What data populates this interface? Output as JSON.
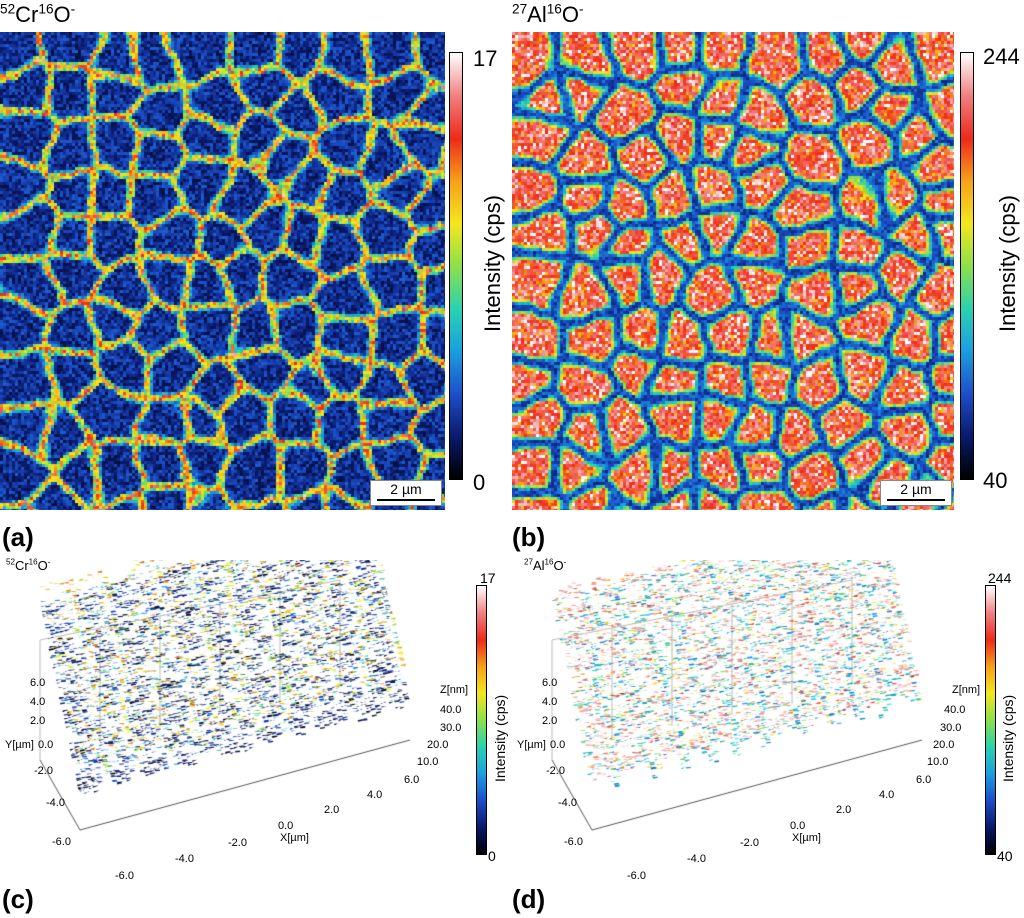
{
  "panels": {
    "a": {
      "title": {
        "iso1": "52",
        "el1": "Cr",
        "iso2": "16",
        "el2": "O",
        "charge": "-"
      },
      "letter": "(a)",
      "colorbar": {
        "max": "17",
        "min": "0",
        "label": "Intensity (cps)"
      },
      "scalebar": "2 µm",
      "dominant": "dark-domains-bright-channels"
    },
    "b": {
      "title": {
        "iso1": "27",
        "el1": "Al",
        "iso2": "16",
        "el2": "O",
        "charge": "-"
      },
      "letter": "(b)",
      "colorbar": {
        "max": "244",
        "min": "40",
        "label": "Intensity (cps)"
      },
      "scalebar": "2 µm",
      "dominant": "bright-domains-dark-channels"
    },
    "c": {
      "title": {
        "iso1": "52",
        "el1": "Cr",
        "iso2": "16",
        "el2": "O",
        "charge": "-"
      },
      "letter": "(c)",
      "colorbar": {
        "max": "17",
        "min": "0",
        "label": "Intensity (cps)"
      },
      "axes": {
        "y_label": "Y[µm]",
        "x_label": "X[µm]",
        "z_label": "Z[nm]",
        "y_ticks": [
          "6.0",
          "4.0",
          "2.0",
          "0.0",
          "-2.0",
          "-4.0",
          "-6.0"
        ],
        "x_ticks": [
          "-6.0",
          "-4.0",
          "-2.0",
          "0.0",
          "2.0",
          "4.0",
          "6.0"
        ],
        "z_ticks": [
          "40.0",
          "30.0",
          "20.0",
          "10.0"
        ]
      }
    },
    "d": {
      "title": {
        "iso1": "27",
        "el1": "Al",
        "iso2": "16",
        "el2": "O",
        "charge": "-"
      },
      "letter": "(d)",
      "colorbar": {
        "max": "244",
        "min": "40",
        "label": "Intensity (cps)"
      },
      "axes": {
        "y_label": "Y[µm]",
        "x_label": "X[µm]",
        "z_label": "Z[nm]",
        "y_ticks": [
          "6.0",
          "4.0",
          "2.0",
          "0.0",
          "-2.0",
          "-4.0",
          "-6.0"
        ],
        "x_ticks": [
          "-6.0",
          "-4.0",
          "-2.0",
          "0.0",
          "2.0",
          "4.0",
          "6.0"
        ],
        "z_ticks": [
          "40.0",
          "30.0",
          "20.0",
          "10.0"
        ]
      }
    }
  },
  "chart_data": [
    {
      "type": "heatmap",
      "title": "52Cr16O-",
      "colorbar_range": [
        0,
        17
      ],
      "colorbar_label": "Intensity (cps)",
      "scale": "2 µm"
    },
    {
      "type": "heatmap",
      "title": "27Al16O-",
      "colorbar_range": [
        40,
        244
      ],
      "colorbar_label": "Intensity (cps)",
      "scale": "2 µm"
    },
    {
      "type": "surface",
      "title": "52Cr16O-",
      "colorbar_range": [
        0,
        17
      ],
      "xlim": [
        -6,
        6
      ],
      "ylim": [
        -6,
        6
      ],
      "zlim": [
        10,
        40
      ],
      "xlabel": "X[µm]",
      "ylabel": "Y[µm]",
      "zlabel": "Z[nm]"
    },
    {
      "type": "surface",
      "title": "27Al16O-",
      "colorbar_range": [
        40,
        244
      ],
      "xlim": [
        -6,
        6
      ],
      "ylim": [
        -6,
        6
      ],
      "zlim": [
        10,
        40
      ],
      "xlabel": "X[µm]",
      "ylabel": "Y[µm]",
      "zlabel": "Z[nm]"
    }
  ],
  "colormap": [
    "#000000",
    "#0a1a6e",
    "#1c50c8",
    "#1aa0e0",
    "#2ad2b0",
    "#8ee04a",
    "#f4e71e",
    "#f5a21a",
    "#ee2a1a",
    "#f08080",
    "#ffffff"
  ]
}
